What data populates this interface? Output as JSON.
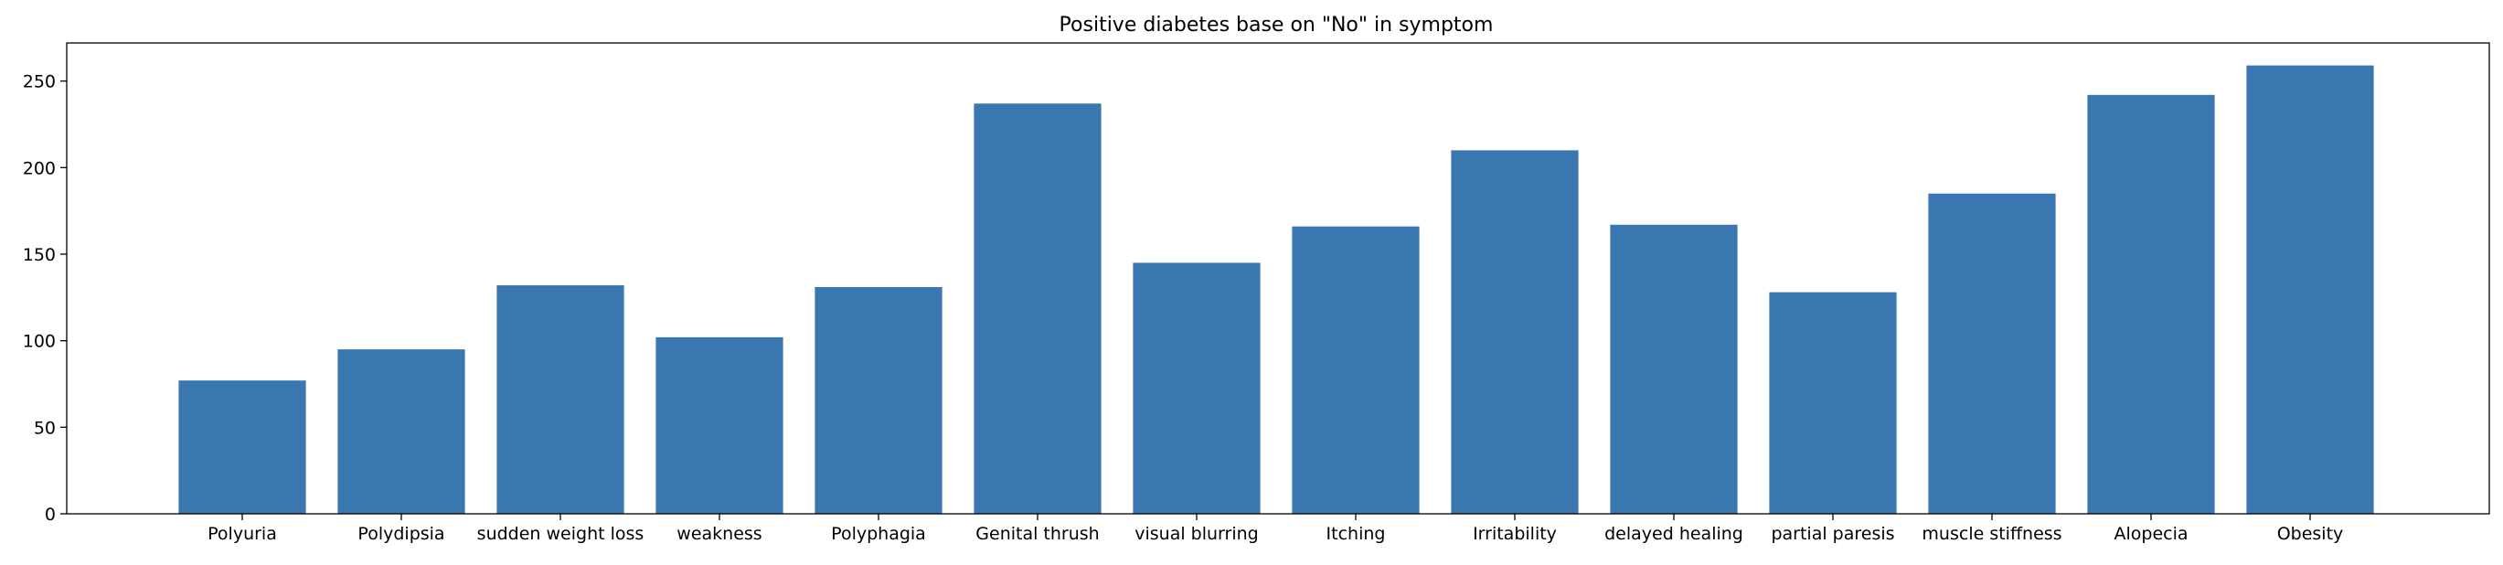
{
  "chart_data": {
    "type": "bar",
    "title": "Positive diabetes base on \"No\" in symptom",
    "xlabel": "",
    "ylabel": "",
    "categories": [
      "Polyuria",
      "Polydipsia",
      "sudden weight loss",
      "weakness",
      "Polyphagia",
      "Genital thrush",
      "visual blurring",
      "Itching",
      "Irritability",
      "delayed healing",
      "partial paresis",
      "muscle stiffness",
      "Alopecia",
      "Obesity"
    ],
    "values": [
      77,
      95,
      132,
      102,
      131,
      237,
      145,
      166,
      210,
      167,
      128,
      185,
      242,
      259
    ],
    "ylim": [
      0,
      272
    ],
    "yticks": [
      0,
      50,
      100,
      150,
      200,
      250
    ],
    "grid": false,
    "legend": "none",
    "bar_color": "#3a76af",
    "axes_color": "#000000"
  }
}
